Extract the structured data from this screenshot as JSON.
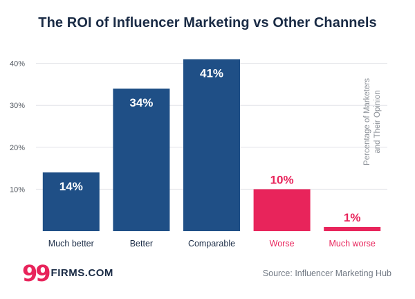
{
  "logo": {
    "mark": "99",
    "text": "FIRMS.COM"
  },
  "source": "Source: Influencer Marketing Hub",
  "colors": {
    "positive": "#1f4f86",
    "negative": "#e8245b",
    "title": "#1a2b45",
    "grid": "#e2e4e8",
    "axis_text": "#555b63"
  },
  "chart_data": {
    "type": "bar",
    "title": "The ROI of Influencer Marketing vs Other Channels",
    "categories": [
      "Much better",
      "Better",
      "Comparable",
      "Worse",
      "Much worse"
    ],
    "values": [
      14,
      34,
      41,
      10,
      1
    ],
    "data_labels": [
      "14%",
      "34%",
      "41%",
      "10%",
      "1%"
    ],
    "bar_colors": [
      "#1f4f86",
      "#1f4f86",
      "#1f4f86",
      "#e8245b",
      "#e8245b"
    ],
    "category_colors": [
      "#1a2b45",
      "#1a2b45",
      "#1a2b45",
      "#e8245b",
      "#e8245b"
    ],
    "y_ticks": [
      10,
      20,
      30,
      40
    ],
    "y_tick_labels": [
      "10%",
      "20%",
      "30%",
      "40%"
    ],
    "ylim": [
      0,
      41
    ],
    "xlabel": "",
    "ylabel": "Percentage of Marketers and Their Opinion",
    "ylabel_lines": [
      "Percentage of Marketers",
      "and Their Opinion"
    ],
    "grid": true
  }
}
